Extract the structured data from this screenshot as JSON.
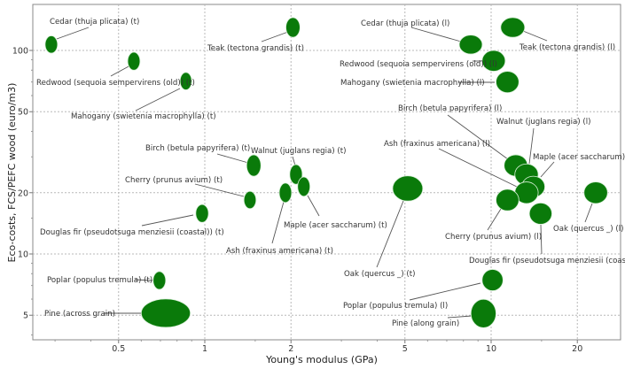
{
  "chart_data": {
    "type": "scatter",
    "subtype": "bubble-ranges",
    "title": "",
    "xlabel": "Young's modulus (GPa)",
    "ylabel": "Eco-costs, FCS/PEFC wood (euro/m3)",
    "xscale": "log",
    "yscale": "log",
    "xlim": [
      0.26,
      27
    ],
    "ylim": [
      3.8,
      155
    ],
    "xticks": [
      "0.5",
      "1",
      "2",
      "5",
      "10",
      "20"
    ],
    "yticks": [
      "5",
      "10",
      "20",
      "50",
      "100"
    ],
    "grid": true,
    "legend": "none",
    "colors": {
      "bubble": "#0a7a0a",
      "grid": "#b8b8b8",
      "leader": "#555555"
    },
    "points": [
      {
        "label": "Cedar (thuja plicata) (t)",
        "E": [
          0.277,
          0.306
        ],
        "cost": [
          97,
          118
        ]
      },
      {
        "label": "Teak (tectona grandis) (t)",
        "E": [
          1.92,
          2.15
        ],
        "cost": [
          116,
          145
        ]
      },
      {
        "label": "Redwood (sequoia sempervirens (old)) (t)",
        "E": [
          0.538,
          0.594
        ],
        "cost": [
          80,
          98
        ]
      },
      {
        "label": "Mahogany (swietenia macrophylla) (t)",
        "E": [
          0.82,
          0.9
        ],
        "cost": [
          64,
          78
        ]
      },
      {
        "label": "Birch (betula papyrifera) (t)",
        "E": [
          1.4,
          1.57
        ],
        "cost": [
          24.1,
          30.7
        ]
      },
      {
        "label": "Walnut (juglans regia) (t)",
        "E": [
          1.98,
          2.19
        ],
        "cost": [
          22.0,
          27.5
        ]
      },
      {
        "label": "Maple (acer saccharum) (t)",
        "E": [
          2.11,
          2.33
        ],
        "cost": [
          19.2,
          23.9
        ]
      },
      {
        "label": "Ash (fraxinus americana) (t)",
        "E": [
          1.82,
          2.01
        ],
        "cost": [
          17.9,
          22.3
        ]
      },
      {
        "label": "Cherry (prunus avium) (t)",
        "E": [
          1.37,
          1.51
        ],
        "cost": [
          16.7,
          20.3
        ]
      },
      {
        "label": "Douglas fir (pseudotsuga menziesii (coastal)) (t)",
        "E": [
          0.93,
          1.03
        ],
        "cost": [
          14.3,
          17.5
        ]
      },
      {
        "label": "Oak (quercus _) (t)",
        "E": [
          4.53,
          5.77
        ],
        "cost": [
          18.2,
          24.2
        ]
      },
      {
        "label": "Poplar (populus tremula) (t)",
        "E": [
          0.66,
          0.73
        ],
        "cost": [
          6.7,
          8.2
        ]
      },
      {
        "label": "Pine (across grain)",
        "E": [
          0.6,
          0.89
        ],
        "cost": [
          4.36,
          6.01
        ]
      },
      {
        "label": "Cedar (thuja plicata) (l)",
        "E": [
          7.74,
          9.31
        ],
        "cost": [
          96,
          119
        ]
      },
      {
        "label": "Teak (tectona grandis) (l)",
        "E": [
          10.8,
          13.1
        ],
        "cost": [
          116,
          145
        ]
      },
      {
        "label": "Redwood (sequoia sempervirens (old)) (l)",
        "E": [
          9.3,
          11.2
        ],
        "cost": [
          79,
          100
        ]
      },
      {
        "label": "Mahogany (swietenia macrophylla) (l)",
        "E": [
          10.4,
          12.5
        ],
        "cost": [
          62,
          79
        ]
      },
      {
        "label": "Birch (betula papyrifera) (l)",
        "E": [
          11.1,
          13.4
        ],
        "cost": [
          24.1,
          30.7
        ]
      },
      {
        "label": "Walnut (juglans regia) (l)",
        "E": [
          12.1,
          14.6
        ],
        "cost": [
          21.8,
          27.7
        ]
      },
      {
        "label": "Maple (acer saccharum) (l)",
        "E": [
          12.8,
          15.4
        ],
        "cost": [
          19.0,
          24.1
        ]
      },
      {
        "label": "Ash (fraxinus americana) (l)",
        "E": [
          12.1,
          14.6
        ],
        "cost": [
          17.7,
          22.6
        ]
      },
      {
        "label": "Cherry (prunus avium) (l)",
        "E": [
          10.4,
          12.5
        ],
        "cost": [
          16.3,
          20.8
        ]
      },
      {
        "label": "Douglas fir (pseudotsuga menziesii (coastal)) (l)",
        "E": [
          13.6,
          16.3
        ],
        "cost": [
          14.0,
          17.8
        ]
      },
      {
        "label": "Oak (quercus _) (l)",
        "E": [
          21.1,
          25.5
        ],
        "cost": [
          17.7,
          22.6
        ]
      },
      {
        "label": "Poplar (populus tremula) (l)",
        "E": [
          9.3,
          11.0
        ],
        "cost": [
          6.6,
          8.4
        ]
      },
      {
        "label": "Pine (along grain)",
        "E": [
          8.5,
          10.4
        ],
        "cost": [
          4.34,
          5.99
        ]
      }
    ]
  }
}
